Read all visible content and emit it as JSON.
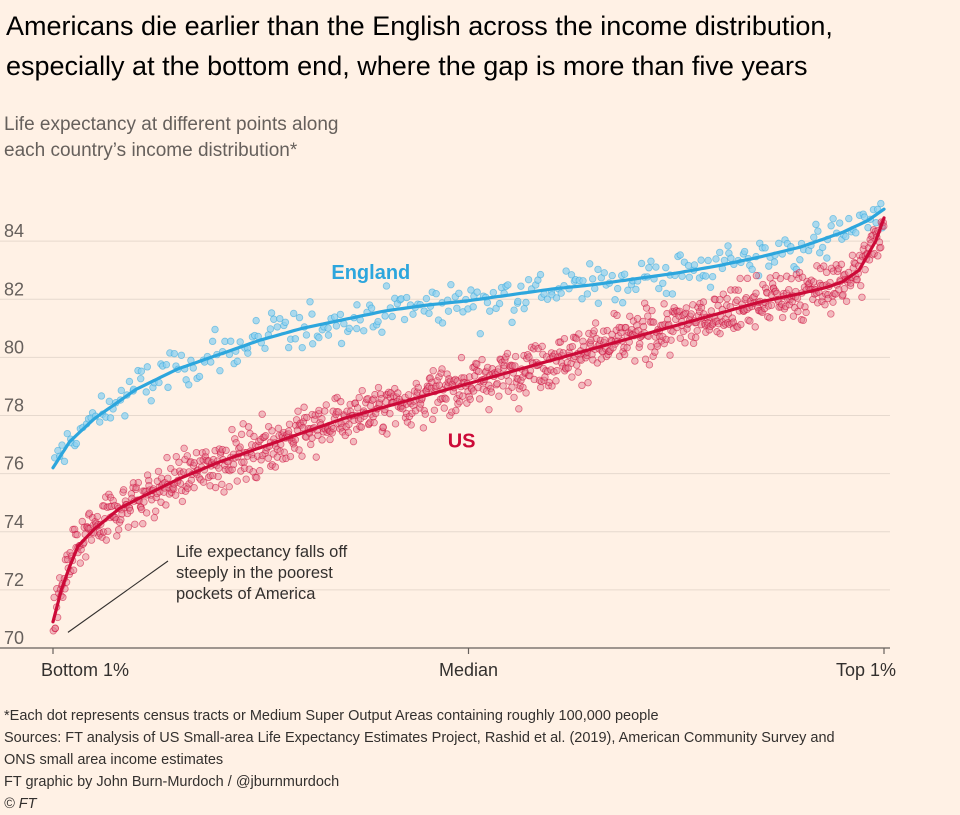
{
  "title": {
    "line1": "Americans die earlier than the English across the income distribution,",
    "line2": "especially at the bottom end, where the gap is more than five years"
  },
  "subtitle": {
    "line1": "Life expectancy at different points along",
    "line2": "each country’s income distribution*"
  },
  "footer": {
    "note": "*Each dot represents census tracts or Medium Super Output Areas containing roughly 100,000 people",
    "sources1": "Sources: FT analysis of US Small-area Life Expectancy Estimates Project, Rashid et al. (2019), American Community Survey and",
    "sources2": "ONS small area income estimates",
    "credit": "FT graphic by John Burn-Murdoch / @jburnmurdoch",
    "copyright": "© FT"
  },
  "chart_data": {
    "type": "scatter",
    "x_label_meaning": "Income percentile (0 = bottom 1%, 100 = top 1%)",
    "xlim": [
      0,
      100
    ],
    "ylim": [
      70,
      86
    ],
    "y_ticks": [
      70,
      72,
      74,
      76,
      78,
      80,
      82,
      84
    ],
    "x_ticks": [
      {
        "value": 0,
        "label": "Bottom 1%"
      },
      {
        "value": 50,
        "label": "Median"
      },
      {
        "value": 100,
        "label": "Top 1%"
      }
    ],
    "series": [
      {
        "name": "England",
        "color": "#2da6dd",
        "dot_fill": "#8fd0ef",
        "approx_dot_count": 320,
        "trend_x": [
          0,
          2,
          5,
          10,
          15,
          20,
          25,
          30,
          35,
          40,
          45,
          50,
          55,
          60,
          65,
          70,
          75,
          80,
          85,
          90,
          95,
          98,
          100
        ],
        "trend_y": [
          76.2,
          77.1,
          77.9,
          78.9,
          79.6,
          80.1,
          80.6,
          81.0,
          81.3,
          81.6,
          81.8,
          81.95,
          82.15,
          82.35,
          82.5,
          82.7,
          82.9,
          83.15,
          83.45,
          83.8,
          84.3,
          84.7,
          85.1
        ],
        "label": "England"
      },
      {
        "name": "US",
        "color": "#cc0a38",
        "dot_fill": "#e3788e",
        "approx_dot_count": 1100,
        "trend_x": [
          0,
          1,
          2,
          3,
          5,
          8,
          10,
          15,
          20,
          25,
          30,
          35,
          40,
          45,
          50,
          55,
          60,
          65,
          70,
          75,
          80,
          85,
          90,
          93,
          95,
          97,
          98,
          99,
          100
        ],
        "trend_y": [
          70.9,
          72.0,
          72.8,
          73.5,
          74.1,
          74.8,
          75.1,
          75.8,
          76.4,
          76.9,
          77.4,
          77.9,
          78.3,
          78.7,
          79.1,
          79.5,
          79.9,
          80.3,
          80.7,
          81.1,
          81.5,
          81.9,
          82.2,
          82.4,
          82.6,
          83.0,
          83.5,
          84.0,
          84.8
        ],
        "label": "US"
      }
    ],
    "annotations": [
      {
        "text_lines": [
          "Life expectancy falls off",
          "steeply in the poorest",
          "pockets of America"
        ],
        "points_to": {
          "x": 3,
          "y": 70.4
        }
      }
    ]
  }
}
